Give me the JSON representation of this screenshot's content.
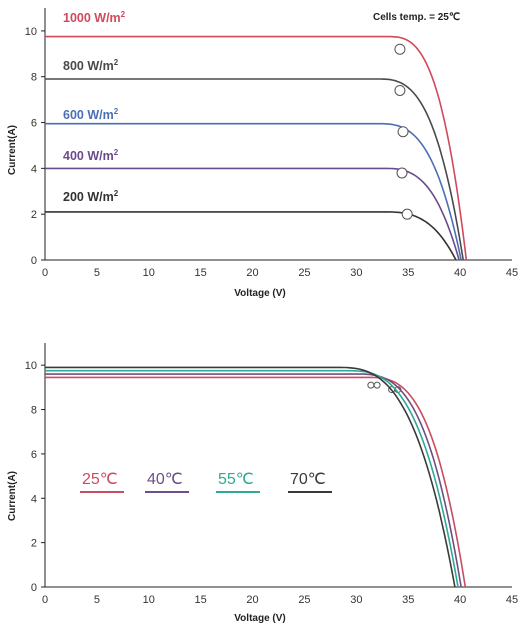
{
  "chart_data": [
    {
      "type": "line",
      "annotation": "Cells temp. = 25℃",
      "xlabel": "Voltage  (V)",
      "ylabel": "Current(A)",
      "xlim": [
        0,
        45
      ],
      "ylim": [
        0,
        11
      ],
      "xticks": [
        "0",
        "5",
        "10",
        "15",
        "20",
        "25",
        "30",
        "35",
        "40",
        "45"
      ],
      "yticks": [
        "0",
        "2",
        "4",
        "6",
        "8",
        "10"
      ],
      "grid": false,
      "series": [
        {
          "name": "1000 W/m",
          "sup": "2",
          "color": "#d1495b",
          "isc": 9.75,
          "voc": 40.6,
          "mpp": [
            34.2,
            9.2
          ],
          "knee": 33.0
        },
        {
          "name": "800 W/m",
          "sup": "2",
          "color": "#4a4a4a",
          "isc": 7.9,
          "voc": 40.3,
          "mpp": [
            34.2,
            7.4
          ],
          "knee": 32.0
        },
        {
          "name": "600 W/m",
          "sup": "2",
          "color": "#4a6fb5",
          "isc": 5.95,
          "voc": 40.1,
          "mpp": [
            34.5,
            5.6
          ],
          "knee": 32.0
        },
        {
          "name": "400 W/m",
          "sup": "2",
          "color": "#6a4c8c",
          "isc": 4.0,
          "voc": 39.9,
          "mpp": [
            34.4,
            3.8
          ],
          "knee": 32.5
        },
        {
          "name": "200 W/m",
          "sup": "2",
          "color": "#333333",
          "isc": 2.1,
          "voc": 39.6,
          "mpp": [
            34.9,
            2.0
          ],
          "knee": 32.5
        }
      ]
    },
    {
      "type": "line",
      "xlabel": "Voltage  (V)",
      "ylabel": "Current(A)",
      "xlim": [
        0,
        45
      ],
      "ylim": [
        0,
        11
      ],
      "xticks": [
        "0",
        "5",
        "10",
        "15",
        "20",
        "25",
        "30",
        "35",
        "40",
        "45"
      ],
      "yticks": [
        "0",
        "2",
        "4",
        "6",
        "8",
        "10"
      ],
      "grid": false,
      "series": [
        {
          "name": "25℃",
          "color": "#c94d5e",
          "isc": 9.45,
          "voc": 40.5,
          "mpp": [
            34.0,
            8.9
          ],
          "knee": 31.0
        },
        {
          "name": "40℃",
          "color": "#6d4f86",
          "isc": 9.6,
          "voc": 40.1,
          "mpp": [
            33.4,
            8.9
          ],
          "knee": 30.0
        },
        {
          "name": "55℃",
          "color": "#2eaa96",
          "isc": 9.75,
          "voc": 39.8,
          "mpp": [
            32.0,
            9.1
          ],
          "knee": 29.0
        },
        {
          "name": "70℃",
          "color": "#3a3a3a",
          "isc": 9.9,
          "voc": 39.5,
          "mpp": [
            31.4,
            9.1
          ],
          "knee": 28.0
        }
      ]
    }
  ]
}
